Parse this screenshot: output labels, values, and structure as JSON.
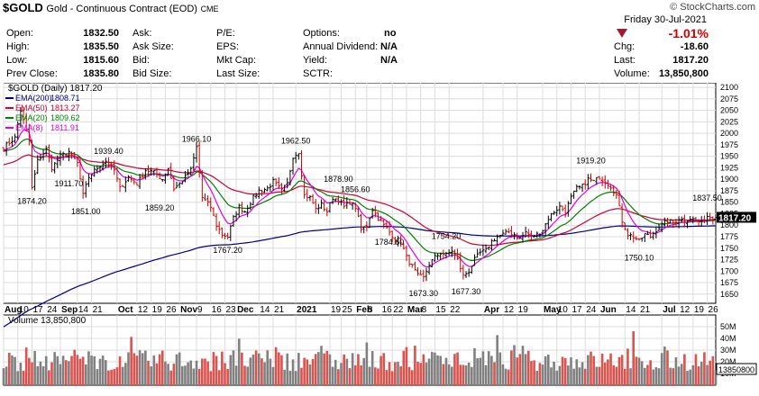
{
  "header": {
    "symbol": "$GOLD",
    "name": "Gold - Continuous Contract (EOD)",
    "exchange": "CME",
    "copyright": "© StockCharts.com",
    "date": "Friday  30-Jul-2021",
    "pct_change": "-1.01%",
    "stats_left": [
      {
        "label": "Open:",
        "value": "1832.50"
      },
      {
        "label": "High:",
        "value": "1835.50"
      },
      {
        "label": "Low:",
        "value": "1815.60"
      },
      {
        "label": "Prev Close:",
        "value": "1835.80"
      }
    ],
    "stats_col2": [
      {
        "label": "Ask:"
      },
      {
        "label": "Ask Size:"
      },
      {
        "label": "Bid:"
      },
      {
        "label": "Bid Size:"
      }
    ],
    "stats_col3": [
      {
        "label": "P/E:"
      },
      {
        "label": "EPS:"
      },
      {
        "label": "Mkt Cap:"
      },
      {
        "label": "Last Size:"
      }
    ],
    "stats_col4": [
      {
        "label": "Options:",
        "value": "no"
      },
      {
        "label": "Annual Dividend:",
        "value": "N/A"
      },
      {
        "label": "Yield:",
        "value": "N/A"
      },
      {
        "label": "SCTR:",
        "value": ""
      }
    ],
    "stats_right": [
      {
        "label": "Chg:",
        "value": "-18.60"
      },
      {
        "label": "Last:",
        "value": "1817.20"
      },
      {
        "label": "Volume:",
        "value": "13,850,800"
      }
    ]
  },
  "colors": {
    "up": "#000000",
    "down": "#cc0000",
    "ema200": "#000080",
    "ema50": "#cc0033",
    "ema20": "#008000",
    "ema8": "#e000e0",
    "grid": "#dcdcdc",
    "vol_up": "#808080",
    "vol_down": "#d9534f",
    "last_box": "#000000"
  },
  "chart_data": [
    {
      "type": "line",
      "title": "$GOLD (Daily) 1817.20",
      "legend_position": "top-left",
      "grid": true,
      "ylim": [
        1630,
        2110
      ],
      "y_ticks": [
        1650,
        1675,
        1700,
        1725,
        1750,
        1775,
        1800,
        1825,
        1850,
        1875,
        1900,
        1925,
        1950,
        1975,
        2000,
        2025,
        2050,
        2075,
        2100
      ],
      "last_price_label": "1817.20",
      "x_ticks": [
        {
          "label": "Aug",
          "i": 0,
          "bold": true
        },
        {
          "label": "10",
          "i": 5
        },
        {
          "label": "17",
          "i": 10
        },
        {
          "label": "24",
          "i": 15
        },
        {
          "label": "Sep",
          "i": 20,
          "bold": true
        },
        {
          "label": "14",
          "i": 26
        },
        {
          "label": "21",
          "i": 31
        },
        {
          "label": "Oct",
          "i": 40,
          "bold": true
        },
        {
          "label": "12",
          "i": 47
        },
        {
          "label": "19",
          "i": 52
        },
        {
          "label": "26",
          "i": 57
        },
        {
          "label": "Nov",
          "i": 62,
          "bold": true
        },
        {
          "label": "9",
          "i": 68
        },
        {
          "label": "16",
          "i": 73
        },
        {
          "label": "23",
          "i": 78
        },
        {
          "label": "Dec",
          "i": 82,
          "bold": true
        },
        {
          "label": "14",
          "i": 90
        },
        {
          "label": "21",
          "i": 95
        },
        {
          "label": "2021",
          "i": 103,
          "bold": true
        },
        {
          "label": "19",
          "i": 115
        },
        {
          "label": "25",
          "i": 119
        },
        {
          "label": "Feb",
          "i": 124,
          "bold": true
        },
        {
          "label": "8",
          "i": 128
        },
        {
          "label": "16",
          "i": 133
        },
        {
          "label": "22",
          "i": 137
        },
        {
          "label": "Mar",
          "i": 142,
          "bold": true
        },
        {
          "label": "8",
          "i": 147
        },
        {
          "label": "15",
          "i": 152
        },
        {
          "label": "22",
          "i": 157
        },
        {
          "label": "Apr",
          "i": 169,
          "bold": true
        },
        {
          "label": "12",
          "i": 176
        },
        {
          "label": "19",
          "i": 181
        },
        {
          "label": "May",
          "i": 190,
          "bold": true
        },
        {
          "label": "10",
          "i": 195
        },
        {
          "label": "17",
          "i": 200
        },
        {
          "label": "24",
          "i": 205
        },
        {
          "label": "Jun",
          "i": 210,
          "bold": true
        },
        {
          "label": "14",
          "i": 219
        },
        {
          "label": "21",
          "i": 224
        },
        {
          "label": "Jul",
          "i": 232,
          "bold": true
        },
        {
          "label": "12",
          "i": 238
        },
        {
          "label": "19",
          "i": 243
        },
        {
          "label": "26",
          "i": 248
        }
      ],
      "series": [
        {
          "name": "EMA(200)",
          "value": "1808.71",
          "color": "#000080"
        },
        {
          "name": "EMA(50)",
          "value": "1813.27",
          "color": "#cc0033"
        },
        {
          "name": "EMA(20)",
          "value": "1809.62",
          "color": "#008000"
        },
        {
          "name": "EMA(8)",
          "value": "1811.91",
          "color": "#e000e0"
        }
      ],
      "price_path": [
        [
          0,
          1970
        ],
        [
          4,
          1990
        ],
        [
          6,
          2050
        ],
        [
          9,
          1985
        ],
        [
          10,
          1880
        ],
        [
          12,
          1940
        ],
        [
          15,
          1965
        ],
        [
          17,
          1925
        ],
        [
          20,
          1950
        ],
        [
          23,
          1960
        ],
        [
          26,
          1935
        ],
        [
          28,
          1865
        ],
        [
          30,
          1905
        ],
        [
          33,
          1925
        ],
        [
          36,
          1940
        ],
        [
          39,
          1920
        ],
        [
          41,
          1880
        ],
        [
          44,
          1905
        ],
        [
          47,
          1890
        ],
        [
          50,
          1920
        ],
        [
          53,
          1915
        ],
        [
          56,
          1900
        ],
        [
          58,
          1925
        ],
        [
          60,
          1880
        ],
        [
          62,
          1890
        ],
        [
          64,
          1905
        ],
        [
          66,
          1920
        ],
        [
          68,
          1970
        ],
        [
          70,
          1860
        ],
        [
          73,
          1840
        ],
        [
          75,
          1800
        ],
        [
          77,
          1780
        ],
        [
          79,
          1775
        ],
        [
          81,
          1815
        ],
        [
          83,
          1840
        ],
        [
          85,
          1830
        ],
        [
          88,
          1860
        ],
        [
          90,
          1875
        ],
        [
          93,
          1880
        ],
        [
          95,
          1895
        ],
        [
          98,
          1875
        ],
        [
          100,
          1890
        ],
        [
          102,
          1950
        ],
        [
          104,
          1960
        ],
        [
          106,
          1865
        ],
        [
          108,
          1860
        ],
        [
          110,
          1835
        ],
        [
          112,
          1845
        ],
        [
          114,
          1830
        ],
        [
          116,
          1860
        ],
        [
          118,
          1855
        ],
        [
          120,
          1840
        ],
        [
          122,
          1850
        ],
        [
          124,
          1840
        ],
        [
          126,
          1790
        ],
        [
          128,
          1800
        ],
        [
          130,
          1835
        ],
        [
          132,
          1815
        ],
        [
          134,
          1800
        ],
        [
          136,
          1785
        ],
        [
          138,
          1770
        ],
        [
          140,
          1765
        ],
        [
          142,
          1730
        ],
        [
          144,
          1710
        ],
        [
          146,
          1690
        ],
        [
          148,
          1685
        ],
        [
          150,
          1715
        ],
        [
          152,
          1730
        ],
        [
          154,
          1740
        ],
        [
          156,
          1735
        ],
        [
          158,
          1745
        ],
        [
          160,
          1725
        ],
        [
          162,
          1690
        ],
        [
          164,
          1700
        ],
        [
          166,
          1725
        ],
        [
          168,
          1740
        ],
        [
          170,
          1745
        ],
        [
          172,
          1765
        ],
        [
          174,
          1775
        ],
        [
          176,
          1780
        ],
        [
          178,
          1785
        ],
        [
          180,
          1780
        ],
        [
          182,
          1770
        ],
        [
          184,
          1785
        ],
        [
          186,
          1775
        ],
        [
          188,
          1780
        ],
        [
          190,
          1790
        ],
        [
          192,
          1815
        ],
        [
          194,
          1830
        ],
        [
          196,
          1840
        ],
        [
          198,
          1830
        ],
        [
          200,
          1860
        ],
        [
          202,
          1880
        ],
        [
          204,
          1885
        ],
        [
          206,
          1900
        ],
        [
          208,
          1895
        ],
        [
          210,
          1905
        ],
        [
          212,
          1895
        ],
        [
          214,
          1885
        ],
        [
          216,
          1865
        ],
        [
          218,
          1810
        ],
        [
          220,
          1780
        ],
        [
          222,
          1775
        ],
        [
          224,
          1765
        ],
        [
          226,
          1780
        ],
        [
          228,
          1775
        ],
        [
          230,
          1790
        ],
        [
          232,
          1800
        ],
        [
          234,
          1810
        ],
        [
          236,
          1805
        ],
        [
          238,
          1815
        ],
        [
          240,
          1810
        ],
        [
          242,
          1815
        ],
        [
          244,
          1810
        ],
        [
          246,
          1805
        ],
        [
          248,
          1820
        ],
        [
          250,
          1817
        ]
      ],
      "annotations": [
        {
          "text": "1874.20",
          "i": 10,
          "price": 1874.2,
          "pos": "below"
        },
        {
          "text": "1911.70",
          "i": 23,
          "price": 1911.7,
          "pos": "below"
        },
        {
          "text": "1939.40",
          "i": 37,
          "price": 1939.4,
          "pos": "above"
        },
        {
          "text": "1851.00",
          "i": 29,
          "price": 1851.0,
          "pos": "below"
        },
        {
          "text": "1966.10",
          "i": 68,
          "price": 1966.1,
          "pos": "above"
        },
        {
          "text": "1859.20",
          "i": 55,
          "price": 1859.2,
          "pos": "below"
        },
        {
          "text": "1767.20",
          "i": 79,
          "price": 1767.2,
          "pos": "below"
        },
        {
          "text": "1962.50",
          "i": 103,
          "price": 1962.5,
          "pos": "above"
        },
        {
          "text": "1878.90",
          "i": 118,
          "price": 1878.9,
          "pos": "above"
        },
        {
          "text": "1856.60",
          "i": 124,
          "price": 1856.6,
          "pos": "above"
        },
        {
          "text": "1784.60",
          "i": 136,
          "price": 1784.6,
          "pos": "below"
        },
        {
          "text": "1754.20",
          "i": 156,
          "price": 1754.2,
          "pos": "above"
        },
        {
          "text": "1673.30",
          "i": 148,
          "price": 1673.3,
          "pos": "below"
        },
        {
          "text": "1677.30",
          "i": 163,
          "price": 1677.3,
          "pos": "below"
        },
        {
          "text": "1919.20",
          "i": 207,
          "price": 1919.2,
          "pos": "above"
        },
        {
          "text": "1750.10",
          "i": 224,
          "price": 1750.1,
          "pos": "below"
        },
        {
          "text": "1837.50",
          "i": 248,
          "price": 1837.5,
          "pos": "above"
        }
      ]
    },
    {
      "type": "bar",
      "title": "Volume 13,850,800",
      "grid": true,
      "ylim": [
        0,
        60000000
      ],
      "y_ticks": [
        {
          "v": 10000000,
          "label": "10M"
        },
        {
          "v": 20000000,
          "label": "20M"
        },
        {
          "v": 30000000,
          "label": "30M"
        },
        {
          "v": 40000000,
          "label": "40M"
        },
        {
          "v": 50000000,
          "label": "50M"
        }
      ],
      "last_value_label": "13850800"
    }
  ]
}
